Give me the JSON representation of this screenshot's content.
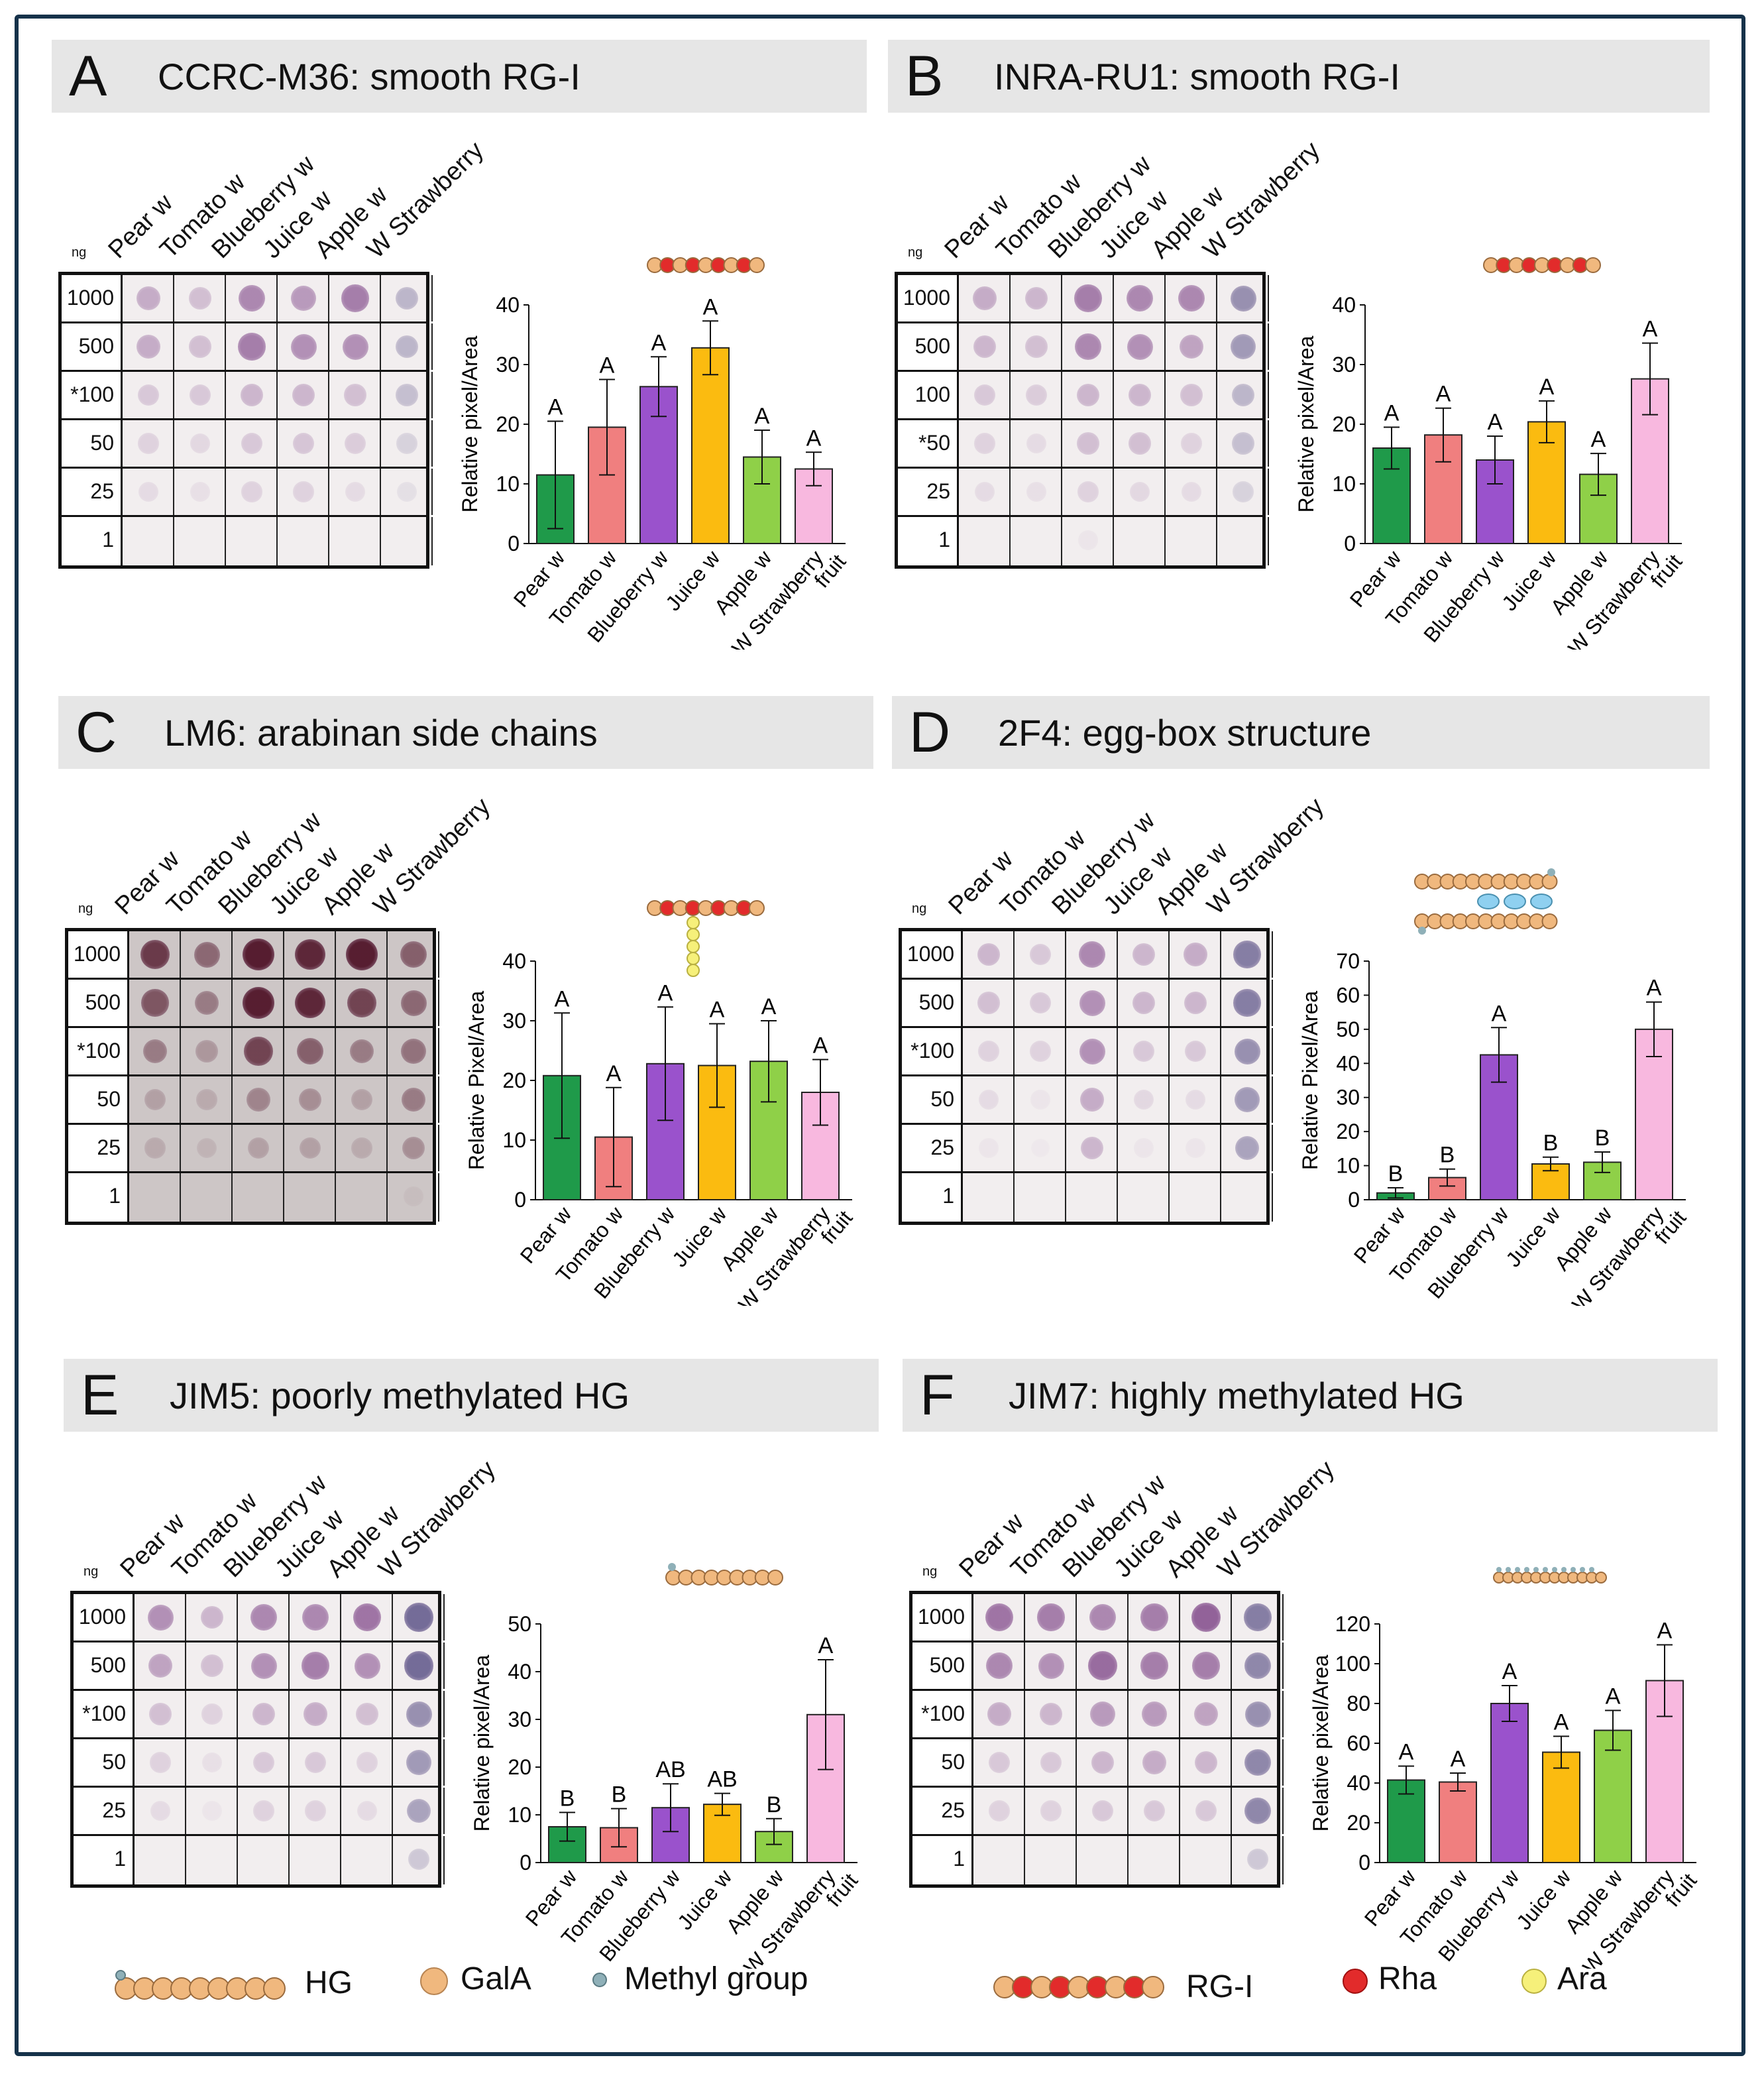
{
  "domain": "Chart",
  "blot_columns": [
    "Pear w",
    "Tomato w",
    "Blueberry w",
    "Juice w",
    "Apple w",
    "W Strawberry"
  ],
  "bar_categories": [
    "Pear w",
    "Tomato w",
    "Blueberry w",
    "Juice w",
    "Apple w",
    "W Strawberry fruit"
  ],
  "bar_colors": [
    "#1f9a4a",
    "#f07f7f",
    "#9a52cc",
    "#fbbb10",
    "#8fd048",
    "#f8b8df"
  ],
  "ng_label": "ng",
  "legend": {
    "hg": "HG",
    "gala": "GalA",
    "methyl": "Methyl group",
    "rgi": "RG-I",
    "rha": "Rha",
    "ara": "Ara",
    "colors": {
      "gala": "#f0b87e",
      "methyl": "#8fb0b8",
      "rha": "#e22b2b",
      "ara": "#f6f07a"
    }
  },
  "panels": [
    {
      "letter": "A",
      "title": "CCRC-M36: smooth RG-I",
      "rows": [
        "1000",
        "500",
        "*100",
        "50",
        "25",
        "1"
      ],
      "dark": false,
      "chart_data": {
        "type": "bar",
        "ylabel": "Relative pixel/Area",
        "ylim": [
          0,
          40
        ],
        "yticks": [
          0,
          10,
          20,
          30,
          40
        ],
        "categories": [
          "Pear w",
          "Tomato w",
          "Blueberry w",
          "Juice w",
          "Apple w",
          "W Strawberry fruit"
        ],
        "values": [
          11.5,
          19.5,
          26.3,
          32.8,
          14.5,
          12.5
        ],
        "errors": [
          9,
          8,
          5,
          4.5,
          4.5,
          2.8
        ],
        "letters": [
          "A",
          "A",
          "A",
          "A",
          "A",
          "A"
        ]
      }
    },
    {
      "letter": "B",
      "title": "INRA-RU1: smooth RG-I",
      "rows": [
        "1000",
        "500",
        "100",
        "*50",
        "25",
        "1"
      ],
      "dark": false,
      "chart_data": {
        "type": "bar",
        "ylabel": "Relative pixel/Area",
        "ylim": [
          0,
          40
        ],
        "yticks": [
          0,
          10,
          20,
          30,
          40
        ],
        "categories": [
          "Pear w",
          "Tomato w",
          "Blueberry w",
          "Juice w",
          "Apple w",
          "W Strawberry fruit"
        ],
        "values": [
          16,
          18.2,
          14,
          20.4,
          11.6,
          27.6
        ],
        "errors": [
          3.5,
          4.5,
          4,
          3.5,
          3.5,
          6
        ],
        "letters": [
          "A",
          "A",
          "A",
          "A",
          "A",
          "A"
        ]
      }
    },
    {
      "letter": "C",
      "title": "LM6: arabinan side chains",
      "rows": [
        "1000",
        "500",
        "*100",
        "50",
        "25",
        "1"
      ],
      "dark": true,
      "chart_data": {
        "type": "bar",
        "ylabel": "Relative Pixel/Area",
        "ylim": [
          0,
          40
        ],
        "yticks": [
          0,
          10,
          20,
          30,
          40
        ],
        "categories": [
          "Pear w",
          "Tomato w",
          "Blueberry w",
          "Juice w",
          "Apple w",
          "W Strawberry fruit"
        ],
        "values": [
          20.8,
          10.5,
          22.8,
          22.5,
          23.2,
          18
        ],
        "errors": [
          10.5,
          8.3,
          9.5,
          7,
          6.8,
          5.5
        ],
        "letters": [
          "A",
          "A",
          "A",
          "A",
          "A",
          "A"
        ]
      }
    },
    {
      "letter": "D",
      "title": "2F4: egg-box structure",
      "rows": [
        "1000",
        "500",
        "*100",
        "50",
        "25",
        "1"
      ],
      "dark": false,
      "chart_data": {
        "type": "bar",
        "ylabel": "Relative Pixel/Area",
        "ylim": [
          0,
          70
        ],
        "yticks": [
          0,
          10,
          20,
          30,
          40,
          50,
          60,
          70
        ],
        "categories": [
          "Pear w",
          "Tomato w",
          "Blueberry w",
          "Juice w",
          "Apple w",
          "W Strawberry fruit"
        ],
        "values": [
          2,
          6.5,
          42.5,
          10.5,
          11,
          50
        ],
        "errors": [
          1.5,
          2.5,
          8,
          2,
          3,
          8
        ],
        "letters": [
          "B",
          "B",
          "A",
          "B",
          "B",
          "A"
        ]
      }
    },
    {
      "letter": "E",
      "title": "JIM5: poorly methylated HG",
      "rows": [
        "1000",
        "500",
        "*100",
        "50",
        "25",
        "1"
      ],
      "dark": false,
      "chart_data": {
        "type": "bar",
        "ylabel": "Relative pixel/Area",
        "ylim": [
          0,
          50
        ],
        "yticks": [
          0,
          10,
          20,
          30,
          40,
          50
        ],
        "categories": [
          "Pear w",
          "Tomato w",
          "Blueberry w",
          "Juice w",
          "Apple w",
          "W Strawberry fruit"
        ],
        "values": [
          7.5,
          7.3,
          11.5,
          12.2,
          6.5,
          31
        ],
        "errors": [
          3,
          4,
          5,
          2.3,
          2.7,
          11.5
        ],
        "letters": [
          "B",
          "B",
          "AB",
          "AB",
          "B",
          "A"
        ]
      }
    },
    {
      "letter": "F",
      "title": "JIM7: highly methylated HG",
      "rows": [
        "1000",
        "500",
        "*100",
        "50",
        "25",
        "1"
      ],
      "dark": false,
      "chart_data": {
        "type": "bar",
        "ylabel": "Relative pixel/Area",
        "ylim": [
          0,
          120
        ],
        "yticks": [
          0,
          20,
          40,
          60,
          80,
          100,
          120
        ],
        "categories": [
          "Pear w",
          "Tomato w",
          "Blueberry w",
          "Juice w",
          "Apple w",
          "W Strawberry fruit"
        ],
        "values": [
          41.5,
          40.5,
          80,
          55.5,
          66.5,
          91.5
        ],
        "errors": [
          7,
          4.5,
          9,
          8,
          10,
          18
        ],
        "letters": [
          "A",
          "A",
          "A",
          "A",
          "A",
          "A"
        ]
      }
    }
  ]
}
